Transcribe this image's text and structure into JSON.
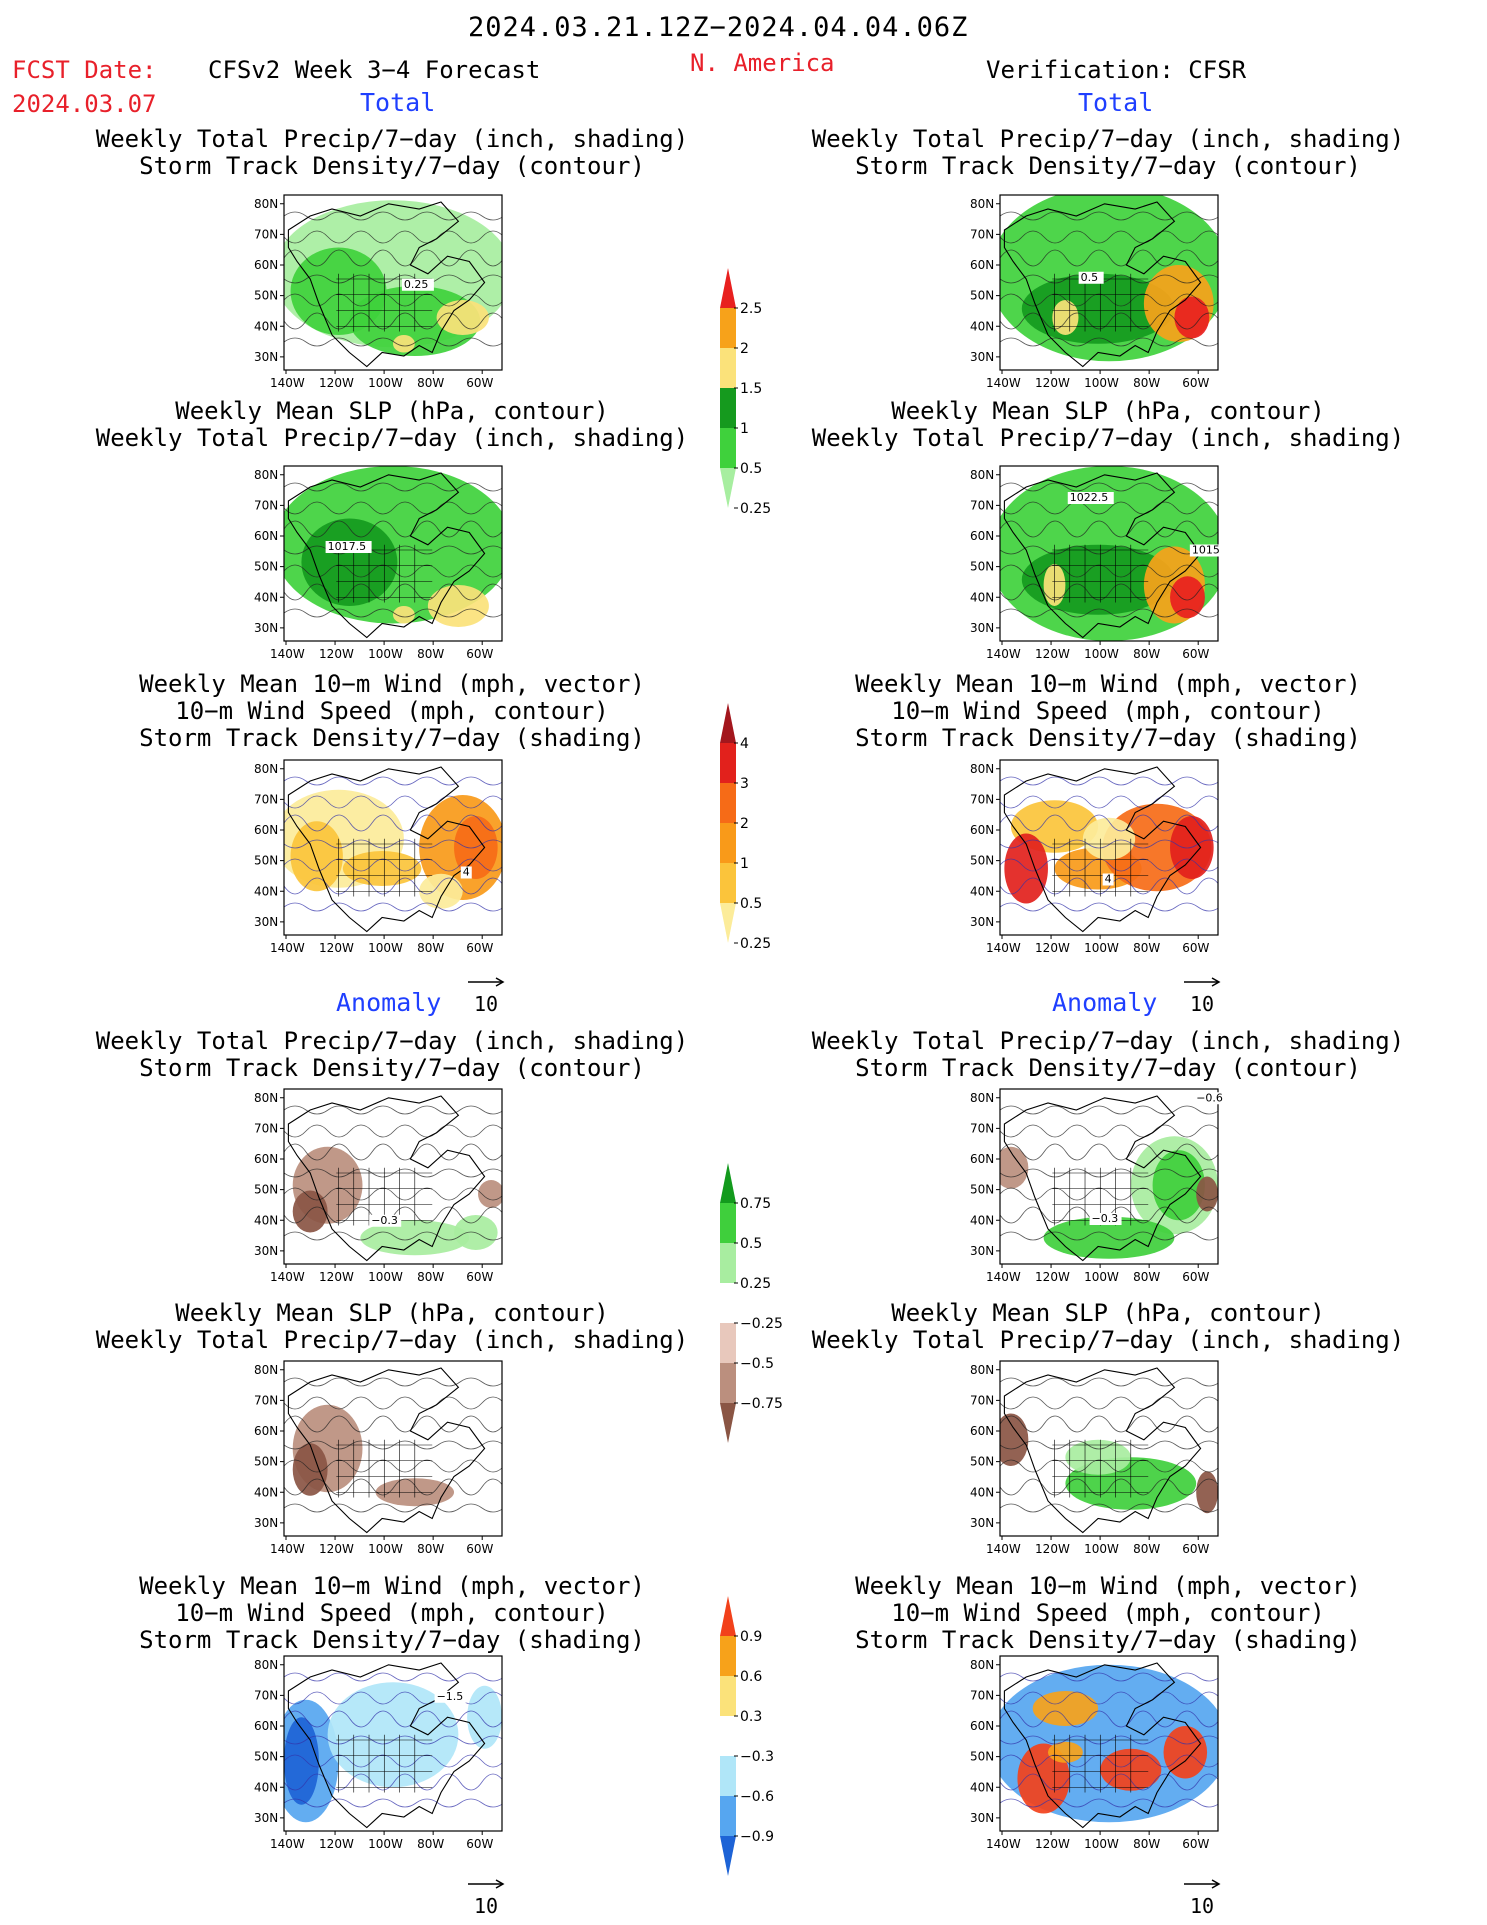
{
  "header": {
    "period": "2024.03.21.12Z−2024.04.04.06Z",
    "fcst_label": "FCST Date:",
    "fcst_date": "2024.03.07",
    "forecast_name": "CFSv2 Week 3−4 Forecast",
    "region": "N. America",
    "verification": "Verification: CFSR"
  },
  "sections": {
    "total_left": "Total",
    "total_right": "Total",
    "anomaly_left": "Anomaly",
    "anomaly_right": "Anomaly"
  },
  "panel_titles": {
    "precip_storm": [
      "Weekly Total Precip/7−day (inch, shading)",
      "Storm Track Density/7−day (contour)"
    ],
    "slp_precip": [
      "Weekly Mean SLP (hPa, contour)",
      "Weekly Total Precip/7−day (inch, shading)"
    ],
    "wind_storm": [
      "Weekly Mean 10−m Wind (mph, vector)",
      "10−m Wind Speed (mph, contour)",
      "Storm Track Density/7−day (shading)"
    ]
  },
  "map_axes": {
    "lat_labels": [
      "80N",
      "70N",
      "60N",
      "50N",
      "40N",
      "30N"
    ],
    "lon_labels": [
      "140W",
      "120W",
      "100W",
      "80W",
      "60W"
    ]
  },
  "contour_labels": {
    "p1_left": "0.25",
    "p1_right": "0.5",
    "p2_left": "1017.5",
    "p2_right_a": "1022.5",
    "p2_right_b": "1015",
    "p3_left": "4",
    "p3_right": "4",
    "p4_left": "−0.3",
    "p4_right_a": "−0.3",
    "p4_right_b": "−0.6",
    "p6_left": "−1.5"
  },
  "vector_ref": "10",
  "colorbars": {
    "precip": {
      "labels": [
        "2.5",
        "2",
        "1.5",
        "1",
        "0.5",
        "0.25"
      ],
      "colors": [
        "#e8201f",
        "#f7a21a",
        "#fbe27a",
        "#159a1e",
        "#3fd13c",
        "#a7eea0"
      ]
    },
    "storm": {
      "labels": [
        "4",
        "3",
        "2",
        "1",
        "0.5",
        "0.25"
      ],
      "colors": [
        "#a3161d",
        "#e2211c",
        "#f66b17",
        "#f99a19",
        "#fbc43b",
        "#fcec9a"
      ]
    },
    "precip_anom": {
      "labels": [
        "0.75",
        "0.5",
        "0.25",
        "−0.25",
        "−0.5",
        "−0.75"
      ],
      "colors": [
        "#139a1d",
        "#3fcf3c",
        "#a8eda0",
        "#ffffff",
        "#e8c8bc",
        "#bb8f7e",
        "#8a5544"
      ]
    },
    "storm_anom": {
      "labels": [
        "0.9",
        "0.6",
        "0.3",
        "−0.3",
        "−0.6",
        "−0.9"
      ],
      "colors": [
        "#f2411b",
        "#f7a21a",
        "#fbe27a",
        "#ffffff",
        "#b0e6f8",
        "#56a6f0",
        "#1d63d6"
      ]
    }
  }
}
